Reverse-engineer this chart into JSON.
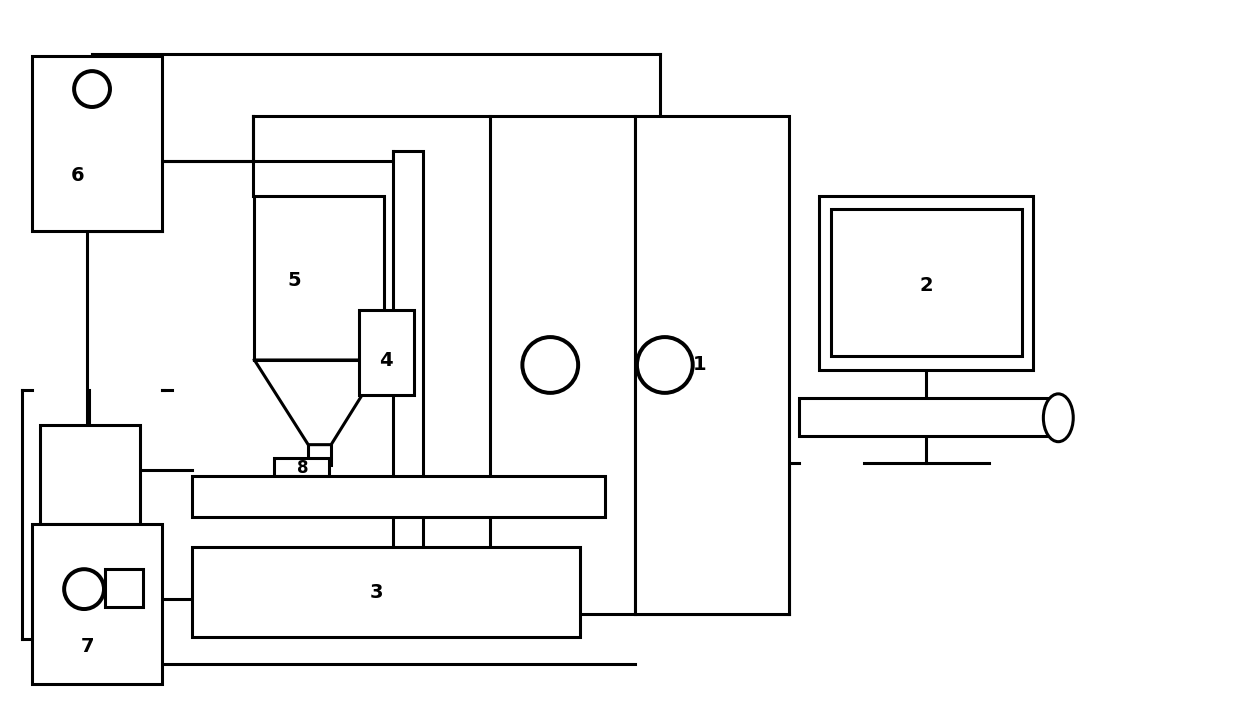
{
  "bg": "#ffffff",
  "lc": "#000000",
  "lw": 2.2,
  "fs": 14,
  "figw": 12.39,
  "figh": 7.2,
  "dpi": 100
}
